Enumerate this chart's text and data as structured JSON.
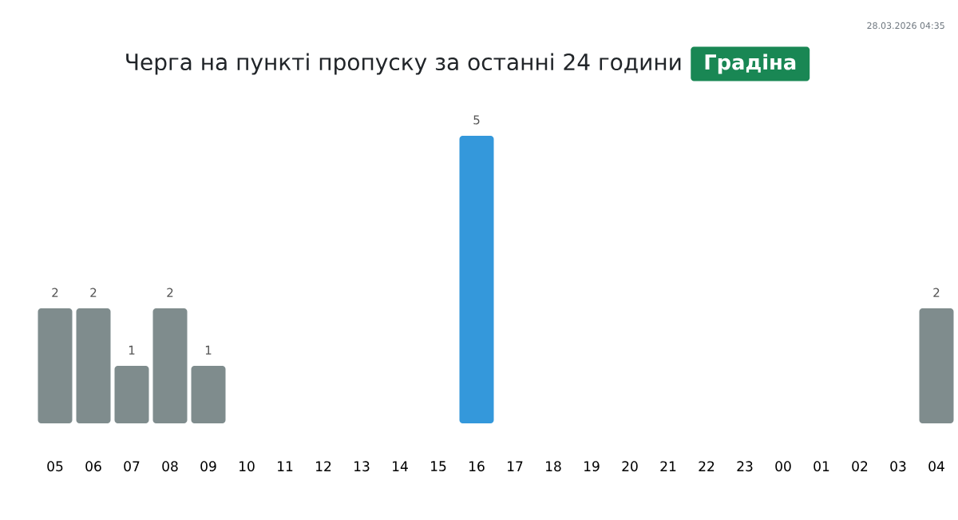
{
  "chart_data": {
    "type": "bar",
    "title": "Черга на пункті пропуску за останні 24 години",
    "subtitle": "Градіна",
    "annotations": [
      "28.03.2026 04:35"
    ],
    "categories": [
      "05",
      "06",
      "07",
      "08",
      "09",
      "10",
      "11",
      "12",
      "13",
      "14",
      "15",
      "16",
      "17",
      "18",
      "19",
      "20",
      "21",
      "22",
      "23",
      "00",
      "01",
      "02",
      "03",
      "04"
    ],
    "values": [
      2,
      2,
      1,
      2,
      1,
      null,
      null,
      null,
      null,
      null,
      null,
      5,
      null,
      null,
      null,
      null,
      null,
      null,
      null,
      null,
      null,
      null,
      null,
      2
    ],
    "colors": [
      "#7f8c8d",
      "#7f8c8d",
      "#7f8c8d",
      "#7f8c8d",
      "#7f8c8d",
      null,
      null,
      null,
      null,
      null,
      null,
      "#3498db",
      null,
      null,
      null,
      null,
      null,
      null,
      null,
      null,
      null,
      null,
      null,
      "#7f8c8d"
    ],
    "tick_labels": "x",
    "data_labels": true
  }
}
